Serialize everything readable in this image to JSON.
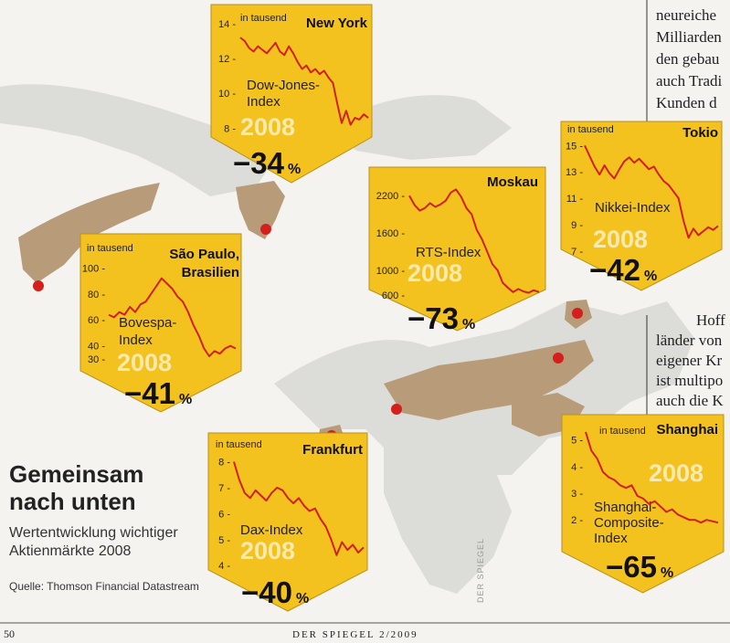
{
  "colors": {
    "panel": "#f4c21e",
    "panel_edge": "#b8901a",
    "line": "#d41f1c",
    "marker": "#d41f1c",
    "land": "#b89b79",
    "land_gray": "#dcdcd8",
    "year": "#fbeab0"
  },
  "headline": {
    "title_line1": "Gemeinsam",
    "title_line2": "nach unten",
    "subtitle_line1": "Wertentwicklung wichtiger",
    "subtitle_line2": "Aktienmärkte 2008",
    "source": "Quelle: Thomson Financial Datastream"
  },
  "footer": {
    "page_number": "50",
    "magazine": "DER SPIEGEL 2/2009"
  },
  "watermark": "DER SPIEGEL",
  "article": {
    "top_lines": [
      "neureiche",
      "Milliarden",
      "den gebau",
      "auch Tradi",
      "Kunden d"
    ],
    "mid_lines": [
      "Hoff",
      "länder von",
      "eigener Kr",
      "ist multipo",
      "auch die K"
    ]
  },
  "chart_data": [
    {
      "type": "line",
      "city": "New York",
      "unit_label": "in tausend",
      "index_lines": [
        "Dow-Jones-",
        "Index"
      ],
      "year": "2008",
      "change": "−34",
      "percent_sign": "%",
      "yticks": [
        "14",
        "12",
        "10",
        "8"
      ],
      "ylim": [
        7.5,
        14.2
      ],
      "series": {
        "values": [
          13.2,
          13.0,
          12.6,
          12.4,
          12.7,
          12.5,
          12.3,
          12.6,
          12.9,
          12.4,
          12.2,
          12.7,
          12.3,
          11.8,
          11.4,
          11.6,
          11.2,
          11.4,
          11.1,
          11.3,
          10.9,
          10.6,
          9.4,
          8.3,
          9.0,
          8.2,
          8.6,
          8.5,
          8.8,
          8.6
        ]
      }
    },
    {
      "type": "line",
      "city": "Tokio",
      "unit_label": "in tausend",
      "index_lines": [
        "Nikkei-Index"
      ],
      "year": "2008",
      "change": "−42",
      "percent_sign": "%",
      "yticks": [
        "15",
        "13",
        "11",
        "9",
        "7"
      ],
      "ylim": [
        6.5,
        15.3
      ],
      "series": {
        "values": [
          15.0,
          14.2,
          13.4,
          12.8,
          13.5,
          12.9,
          12.5,
          13.2,
          13.8,
          14.1,
          13.7,
          14.0,
          13.6,
          13.2,
          13.4,
          12.8,
          12.3,
          12.0,
          11.5,
          11.0,
          9.3,
          8.0,
          8.7,
          8.2,
          8.5,
          8.8,
          8.6,
          8.9
        ]
      }
    },
    {
      "type": "line",
      "city": "Moskau",
      "unit_label": "",
      "index_lines": [
        "RTS-Index"
      ],
      "year": "2008",
      "change": "−73",
      "percent_sign": "%",
      "yticks": [
        "2200",
        "1600",
        "1000",
        "600"
      ],
      "ylim": [
        500,
        2350
      ],
      "series": {
        "values": [
          2200,
          2050,
          1960,
          2000,
          2080,
          2020,
          2060,
          2120,
          2250,
          2300,
          2180,
          2000,
          1900,
          1650,
          1500,
          1300,
          1100,
          1000,
          800,
          720,
          650,
          700,
          660,
          640,
          680,
          650
        ]
      }
    },
    {
      "type": "line",
      "city": "São Paulo, Brasilien",
      "city_lines": [
        "São Paulo,",
        "Brasilien"
      ],
      "unit_label": "in tausend",
      "index_lines": [
        "Bovespa-",
        "Index"
      ],
      "year": "2008",
      "change": "−41",
      "percent_sign": "%",
      "yticks": [
        "100",
        "80",
        "60",
        "40",
        "30"
      ],
      "ylim": [
        25,
        108
      ],
      "series": {
        "values": [
          64,
          62,
          66,
          64,
          70,
          66,
          72,
          74,
          80,
          86,
          92,
          88,
          84,
          78,
          74,
          66,
          56,
          48,
          38,
          32,
          36,
          34,
          38,
          40,
          38
        ]
      }
    },
    {
      "type": "line",
      "city": "Frankfurt",
      "unit_label": "in tausend",
      "index_lines": [
        "Dax-Index"
      ],
      "year": "2008",
      "change": "−40",
      "percent_sign": "%",
      "yticks": [
        "8",
        "7",
        "6",
        "5",
        "4"
      ],
      "ylim": [
        3.9,
        8.3
      ],
      "series": {
        "values": [
          8.0,
          7.3,
          6.8,
          6.6,
          6.9,
          6.7,
          6.5,
          6.8,
          7.0,
          6.9,
          6.6,
          6.4,
          6.6,
          6.3,
          6.1,
          6.2,
          5.8,
          5.5,
          5.0,
          4.4,
          4.9,
          4.6,
          4.8,
          4.5,
          4.7
        ]
      }
    },
    {
      "type": "line",
      "city": "Shanghai",
      "unit_label": "in tausend",
      "index_lines": [
        "Shanghai-",
        "Composite-",
        "Index"
      ],
      "year": "2008",
      "change": "−65",
      "percent_sign": "%",
      "yticks": [
        "5",
        "4",
        "3",
        "2"
      ],
      "ylim": [
        1.7,
        5.4
      ],
      "series": {
        "values": [
          5.3,
          4.6,
          4.3,
          3.8,
          3.6,
          3.5,
          3.3,
          3.2,
          3.3,
          2.9,
          2.8,
          2.6,
          2.7,
          2.5,
          2.3,
          2.4,
          2.2,
          2.1,
          2.0,
          2.0,
          1.9,
          2.0,
          1.95,
          1.9
        ]
      }
    }
  ]
}
